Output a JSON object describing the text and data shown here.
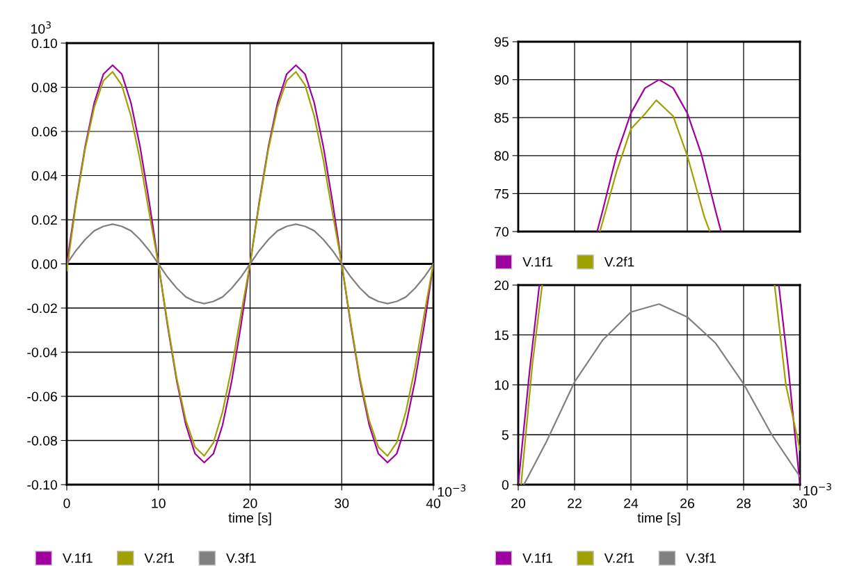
{
  "chart_data": [
    {
      "type": "line",
      "xlabel": "time [s]",
      "ylabel": "10$^{3}$",
      "annotations": [
        "10$^{−3}$"
      ],
      "legend": "bottom",
      "grid": true,
      "xlim": [
        0,
        40
      ],
      "xticks": [
        0,
        10,
        20,
        30,
        40
      ],
      "ylim": [
        -0.1,
        0.1
      ],
      "yticks": [
        {
          "value": -0.1,
          "label": "-0.10"
        },
        {
          "value": -0.08,
          "label": "-0.08"
        },
        {
          "value": -0.06,
          "label": "-0.06"
        },
        {
          "value": -0.04,
          "label": "-0.04"
        },
        {
          "value": -0.02,
          "label": "-0.02"
        },
        {
          "value": 0,
          "label": "0.00"
        },
        {
          "value": 0.02,
          "label": "0.02"
        },
        {
          "value": 0.04,
          "label": "0.04"
        },
        {
          "value": 0.06,
          "label": "0.06"
        },
        {
          "value": 0.08,
          "label": "0.08"
        },
        {
          "value": 0.1,
          "label": "0.10"
        }
      ],
      "ref_lines": [
        {
          "axis": "y",
          "value": 0,
          "color": "#000000"
        }
      ],
      "x": [
        0,
        1,
        2,
        3,
        4,
        5,
        6,
        7,
        8,
        9,
        10,
        11,
        12,
        13,
        14,
        15,
        16,
        17,
        18,
        19,
        20,
        21,
        22,
        23,
        24,
        25,
        26,
        27,
        28,
        29,
        30,
        31,
        32,
        33,
        34,
        35,
        36,
        37,
        38,
        39,
        40
      ],
      "series": [
        {
          "name": "V.1f1",
          "color": "#a000a0",
          "values": [
            0,
            0.028,
            0.053,
            0.073,
            0.086,
            0.09,
            0.086,
            0.073,
            0.053,
            0.028,
            0,
            -0.028,
            -0.053,
            -0.073,
            -0.086,
            -0.09,
            -0.086,
            -0.073,
            -0.053,
            -0.028,
            0,
            0.028,
            0.053,
            0.073,
            0.086,
            0.09,
            0.086,
            0.073,
            0.053,
            0.028,
            0,
            -0.028,
            -0.053,
            -0.073,
            -0.086,
            -0.09,
            -0.086,
            -0.073,
            -0.053,
            -0.028,
            0
          ]
        },
        {
          "name": "V.2f1",
          "color": "#a0a000",
          "values": [
            -0.003,
            0.027,
            0.052,
            0.071,
            0.083,
            0.087,
            0.081,
            0.067,
            0.047,
            0.023,
            0,
            -0.027,
            -0.052,
            -0.071,
            -0.083,
            -0.087,
            -0.081,
            -0.067,
            -0.047,
            -0.023,
            0,
            0.027,
            0.052,
            0.071,
            0.083,
            0.087,
            0.081,
            0.067,
            0.047,
            0.023,
            0,
            -0.027,
            -0.052,
            -0.071,
            -0.083,
            -0.087,
            -0.081,
            -0.067,
            -0.047,
            -0.023,
            0
          ]
        },
        {
          "name": "V.3f1",
          "color": "#808080",
          "values": [
            0,
            0.006,
            0.011,
            0.015,
            0.017,
            0.018,
            0.017,
            0.015,
            0.011,
            0.006,
            0,
            -0.006,
            -0.011,
            -0.015,
            -0.017,
            -0.018,
            -0.017,
            -0.015,
            -0.011,
            -0.006,
            0,
            0.006,
            0.011,
            0.015,
            0.017,
            0.018,
            0.017,
            0.015,
            0.011,
            0.006,
            0,
            -0.006,
            -0.011,
            -0.015,
            -0.017,
            -0.018,
            -0.017,
            -0.015,
            -0.011,
            -0.006,
            0
          ]
        }
      ]
    },
    {
      "type": "line",
      "legend": "bottom",
      "grid": true,
      "tick_labels": "y",
      "xlim": [
        20,
        30
      ],
      "xticks": [
        20,
        22,
        24,
        26,
        28,
        30
      ],
      "ylim": [
        70,
        95
      ],
      "yticks": [
        70,
        75,
        80,
        85,
        90,
        95
      ],
      "series": [
        {
          "name": "V.1f1",
          "color": "#a000a0",
          "x": [
            22.8,
            23,
            23.5,
            24,
            24.5,
            25,
            25.5,
            26,
            26.5,
            27,
            27.2
          ],
          "values": [
            70,
            72.8,
            80.2,
            85.6,
            88.9,
            90,
            88.9,
            85.6,
            80.2,
            72.8,
            70
          ]
        },
        {
          "name": "V.2f1",
          "color": "#a0a000",
          "x": [
            22.9,
            23.2,
            23.5,
            24,
            24.5,
            24.9,
            25.5,
            26,
            26.3,
            26.6,
            26.8
          ],
          "values": [
            70,
            74,
            78,
            83.5,
            85.5,
            87.3,
            85.2,
            80,
            76,
            72,
            70
          ]
        }
      ]
    },
    {
      "type": "line",
      "xlabel": "time [s]",
      "annotations": [
        "10$^{−3}$"
      ],
      "legend": "bottom",
      "grid": true,
      "xlim": [
        20,
        30
      ],
      "xticks": [
        20,
        22,
        24,
        26,
        28,
        30
      ],
      "ylim": [
        0,
        20
      ],
      "yticks": [
        0,
        5,
        10,
        15,
        20
      ],
      "series": [
        {
          "name": "V.1f1",
          "color": "#a000a0",
          "x": [
            20,
            20.4,
            20.75,
            25,
            29.25,
            29.6,
            30
          ],
          "values": [
            0,
            11.3,
            20,
            null,
            20,
            11.3,
            0
          ]
        },
        {
          "name": "V.2f1",
          "color": "#a0a000",
          "x": [
            20.1,
            20.5,
            20.85,
            25,
            29.1,
            29.5,
            30
          ],
          "values": [
            0,
            12,
            20,
            null,
            20,
            10,
            3.5
          ]
        },
        {
          "name": "V.3f1",
          "color": "#808080",
          "x": [
            20.2,
            21,
            22,
            23,
            24,
            25,
            26,
            27,
            28,
            29,
            30
          ],
          "values": [
            0,
            4.3,
            10.3,
            14.5,
            17.3,
            18.1,
            16.8,
            14.2,
            10.1,
            5.0,
            0.8
          ]
        }
      ]
    }
  ]
}
